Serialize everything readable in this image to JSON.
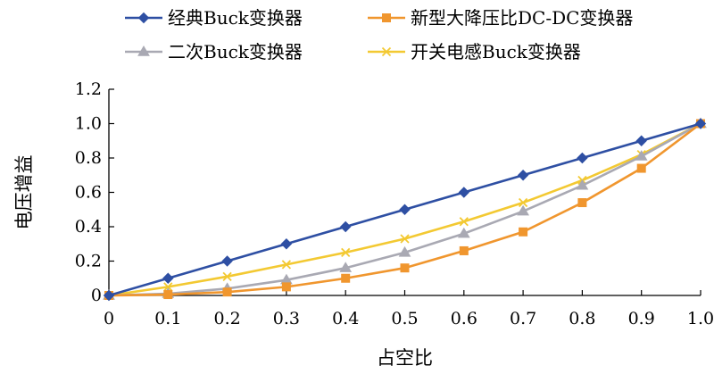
{
  "chart_data": {
    "type": "line",
    "xlabel": "占空比",
    "ylabel": "电压增益",
    "xlim": [
      0,
      1.0
    ],
    "ylim": [
      0,
      1.2
    ],
    "x": [
      0,
      0.1,
      0.2,
      0.3,
      0.4,
      0.5,
      0.6,
      0.7,
      0.8,
      0.9,
      1.0
    ],
    "x_tick_labels": [
      "0",
      "0.1",
      "0.2",
      "0.3",
      "0.4",
      "0.5",
      "0.6",
      "0.7",
      "0.8",
      "0.9",
      "1.0"
    ],
    "y_ticks": [
      0,
      0.2,
      0.4,
      0.6,
      0.8,
      1.0,
      1.2
    ],
    "y_tick_labels": [
      "0",
      "0.2",
      "0.4",
      "0.6",
      "0.8",
      "1.0",
      "1.2"
    ],
    "grid": false,
    "legend_position": "top",
    "series": [
      {
        "name": "经典Buck变换器",
        "color": "#2E4FA3",
        "marker": "diamond",
        "values": [
          0,
          0.1,
          0.2,
          0.3,
          0.4,
          0.5,
          0.6,
          0.7,
          0.8,
          0.9,
          1.0
        ]
      },
      {
        "name": "新型大降压比DC-DC变换器",
        "color": "#F0962E",
        "marker": "square",
        "values": [
          0,
          0.005,
          0.02,
          0.05,
          0.1,
          0.16,
          0.26,
          0.37,
          0.54,
          0.74,
          1.0
        ]
      },
      {
        "name": "二次Buck变换器",
        "color": "#A9A9B3",
        "marker": "triangle",
        "values": [
          0,
          0.01,
          0.04,
          0.09,
          0.16,
          0.25,
          0.36,
          0.49,
          0.64,
          0.81,
          1.0
        ]
      },
      {
        "name": "开关电感Buck变换器",
        "color": "#F3C932",
        "marker": "x",
        "values": [
          0,
          0.05,
          0.11,
          0.18,
          0.25,
          0.33,
          0.43,
          0.54,
          0.67,
          0.82,
          1.0
        ]
      }
    ]
  }
}
